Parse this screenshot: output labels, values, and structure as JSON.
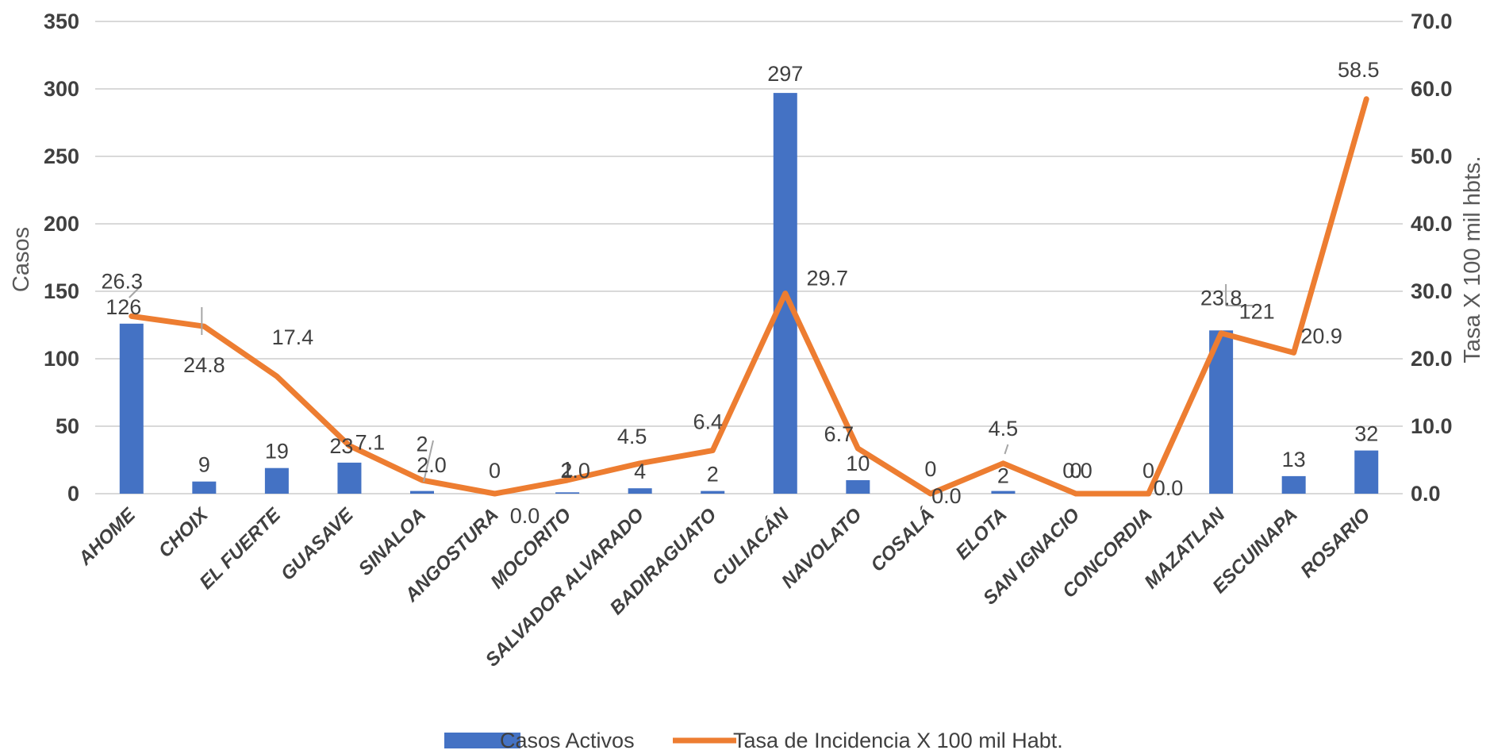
{
  "chart_data": {
    "type": "bar",
    "categories": [
      "AHOME",
      "CHOIX",
      "EL FUERTE",
      "GUASAVE",
      "SINALOA",
      "ANGOSTURA",
      "MOCORITO",
      "SALVADOR ALVARADO",
      "BADIRAGUATO",
      "CULIACÁN",
      "NAVOLATO",
      "COSALÁ",
      "ELOTA",
      "SAN IGNACIO",
      "CONCORDIA",
      "MAZATLAN",
      "ESCUINAPA",
      "ROSARIO"
    ],
    "series": [
      {
        "name": "Casos Activos",
        "type": "bar",
        "axis": "left",
        "values": [
          126,
          9,
          19,
          23,
          2,
          0,
          1,
          4,
          2,
          297,
          10,
          0,
          2,
          0,
          0,
          121,
          13,
          32
        ],
        "labels": [
          "126",
          "9",
          "19",
          "23",
          "2",
          "0",
          "1",
          "4",
          "2",
          "297",
          "10",
          "0",
          "2",
          "0",
          "0",
          "121",
          "13",
          "32"
        ]
      },
      {
        "name": "Tasa de Incidencia X 100 mil Habt.",
        "type": "line",
        "axis": "right",
        "values": [
          26.3,
          24.8,
          17.4,
          7.1,
          2.0,
          0.0,
          2.0,
          4.5,
          6.4,
          29.7,
          6.7,
          0.0,
          4.5,
          0.0,
          0.0,
          23.8,
          20.9,
          58.5
        ],
        "labels": [
          "26.3",
          "24.8",
          "17.4",
          "7.1",
          "2.0",
          "0.0",
          "2.0",
          "4.5",
          "6.4",
          "29.7",
          "6.7",
          "0.0",
          "4.5",
          "0.0",
          "0.0",
          "23.8",
          "20.9",
          "58.5"
        ]
      }
    ],
    "y_left": {
      "label": "Casos",
      "ticks": [
        "0",
        "50",
        "100",
        "150",
        "200",
        "250",
        "300",
        "350"
      ],
      "range": [
        0,
        350
      ]
    },
    "y_right": {
      "label": "Tasa X 100 mil hbts.",
      "ticks": [
        "0.0",
        "10.0",
        "20.0",
        "30.0",
        "40.0",
        "50.0",
        "60.0",
        "70.0"
      ],
      "range": [
        0,
        70
      ]
    },
    "grid": true,
    "legend": "bottom",
    "colors": {
      "bar": "#4472C4",
      "line": "#ED7D31",
      "grid": "#D9D9D9",
      "text": "#404040"
    }
  }
}
